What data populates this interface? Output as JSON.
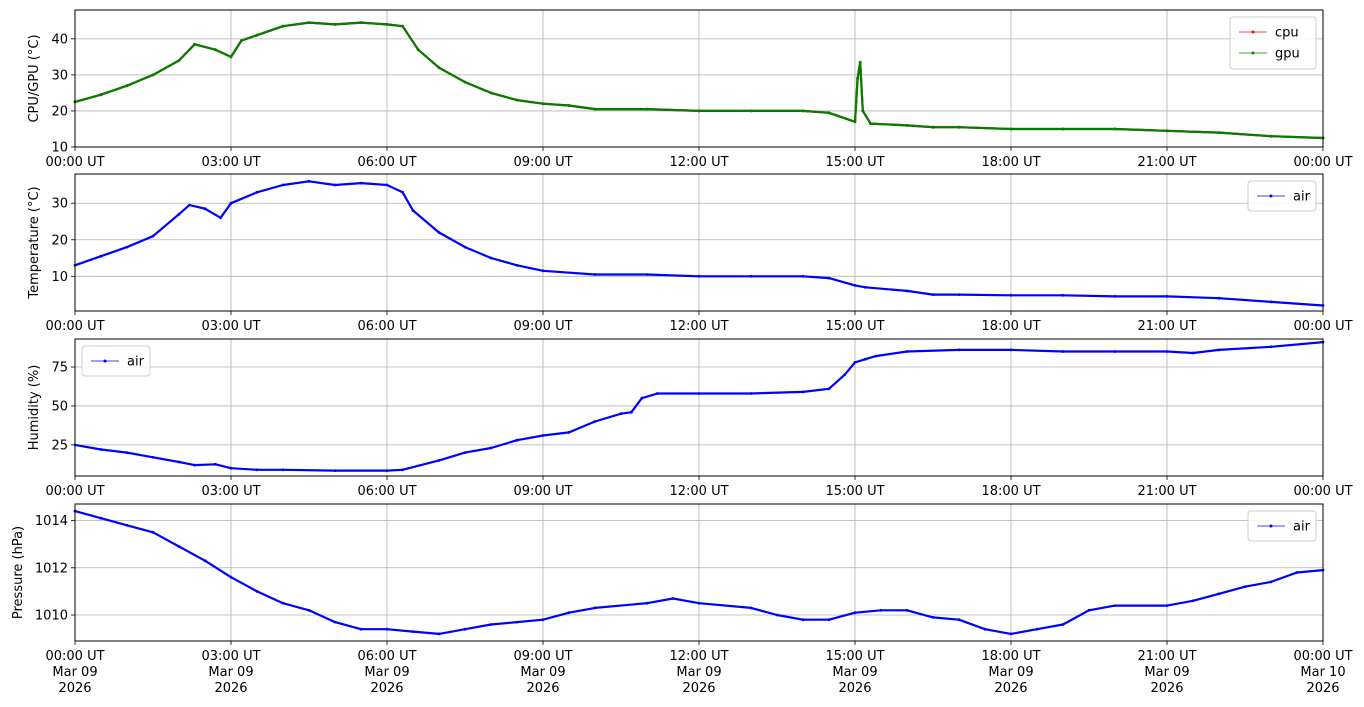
{
  "chart_data": [
    {
      "type": "line",
      "ylabel": "CPU/GPU (°C)",
      "ylim": [
        10,
        48
      ],
      "yticks": [
        10,
        20,
        30,
        40
      ],
      "xlim_hours": [
        0,
        24
      ],
      "x_tick_labels": [
        "00:00 UT",
        "03:00 UT",
        "06:00 UT",
        "09:00 UT",
        "12:00 UT",
        "15:00 UT",
        "18:00 UT",
        "21:00 UT",
        "00:00 UT"
      ],
      "grid": true,
      "legend_position": "top-right",
      "series": [
        {
          "name": "cpu",
          "color": "#ff0000",
          "points": [
            [
              0,
              22.5
            ],
            [
              0.5,
              24.5
            ],
            [
              1,
              27
            ],
            [
              1.5,
              30
            ],
            [
              2,
              34
            ],
            [
              2.3,
              38.5
            ],
            [
              2.7,
              37
            ],
            [
              3,
              35
            ],
            [
              3.2,
              39.5
            ],
            [
              3.5,
              41
            ],
            [
              4,
              43.5
            ],
            [
              4.5,
              44.5
            ],
            [
              5,
              44
            ],
            [
              5.5,
              44.5
            ],
            [
              6,
              44
            ],
            [
              6.3,
              43.5
            ],
            [
              6.6,
              37
            ],
            [
              7,
              32
            ],
            [
              7.5,
              28
            ],
            [
              8,
              25
            ],
            [
              8.5,
              23
            ],
            [
              9,
              22
            ],
            [
              9.5,
              21.5
            ],
            [
              10,
              20.5
            ],
            [
              11,
              20.5
            ],
            [
              12,
              20
            ],
            [
              13,
              20
            ],
            [
              14,
              20
            ],
            [
              14.5,
              19.5
            ],
            [
              15,
              17
            ],
            [
              15.05,
              29
            ],
            [
              15.1,
              33.5
            ],
            [
              15.15,
              20
            ],
            [
              15.3,
              16.5
            ],
            [
              16,
              16
            ],
            [
              16.5,
              15.5
            ],
            [
              17,
              15.5
            ],
            [
              18,
              15
            ],
            [
              19,
              15
            ],
            [
              20,
              15
            ],
            [
              21,
              14.5
            ],
            [
              22,
              14
            ],
            [
              23,
              13
            ],
            [
              24,
              12.5
            ]
          ]
        },
        {
          "name": "gpu",
          "color": "#008000",
          "points": [
            [
              0,
              22.5
            ],
            [
              0.5,
              24.5
            ],
            [
              1,
              27
            ],
            [
              1.5,
              30
            ],
            [
              2,
              34
            ],
            [
              2.3,
              38.5
            ],
            [
              2.7,
              37
            ],
            [
              3,
              35
            ],
            [
              3.2,
              39.5
            ],
            [
              3.5,
              41
            ],
            [
              4,
              43.5
            ],
            [
              4.5,
              44.5
            ],
            [
              5,
              44
            ],
            [
              5.5,
              44.5
            ],
            [
              6,
              44
            ],
            [
              6.3,
              43.5
            ],
            [
              6.6,
              37
            ],
            [
              7,
              32
            ],
            [
              7.5,
              28
            ],
            [
              8,
              25
            ],
            [
              8.5,
              23
            ],
            [
              9,
              22
            ],
            [
              9.5,
              21.5
            ],
            [
              10,
              20.5
            ],
            [
              11,
              20.5
            ],
            [
              12,
              20
            ],
            [
              13,
              20
            ],
            [
              14,
              20
            ],
            [
              14.5,
              19.5
            ],
            [
              15,
              17
            ],
            [
              15.05,
              29
            ],
            [
              15.1,
              33.5
            ],
            [
              15.15,
              20
            ],
            [
              15.3,
              16.5
            ],
            [
              16,
              16
            ],
            [
              16.5,
              15.5
            ],
            [
              17,
              15.5
            ],
            [
              18,
              15
            ],
            [
              19,
              15
            ],
            [
              20,
              15
            ],
            [
              21,
              14.5
            ],
            [
              22,
              14
            ],
            [
              23,
              13
            ],
            [
              24,
              12.5
            ]
          ]
        }
      ]
    },
    {
      "type": "line",
      "ylabel": "Temperature (°C)",
      "ylim": [
        0.5,
        38
      ],
      "yticks": [
        10,
        20,
        30
      ],
      "xlim_hours": [
        0,
        24
      ],
      "x_tick_labels": [
        "00:00 UT",
        "03:00 UT",
        "06:00 UT",
        "09:00 UT",
        "12:00 UT",
        "15:00 UT",
        "18:00 UT",
        "21:00 UT",
        "00:00 UT"
      ],
      "grid": true,
      "legend_position": "top-right",
      "series": [
        {
          "name": "air",
          "color": "#0000ff",
          "points": [
            [
              0,
              13
            ],
            [
              0.5,
              15.5
            ],
            [
              1,
              18
            ],
            [
              1.5,
              21
            ],
            [
              2,
              27
            ],
            [
              2.2,
              29.5
            ],
            [
              2.5,
              28.5
            ],
            [
              2.8,
              26
            ],
            [
              3,
              30
            ],
            [
              3.5,
              33
            ],
            [
              4,
              35
            ],
            [
              4.5,
              36
            ],
            [
              5,
              35
            ],
            [
              5.5,
              35.5
            ],
            [
              6,
              35
            ],
            [
              6.3,
              33
            ],
            [
              6.5,
              28
            ],
            [
              7,
              22
            ],
            [
              7.5,
              18
            ],
            [
              8,
              15
            ],
            [
              8.5,
              13
            ],
            [
              9,
              11.5
            ],
            [
              10,
              10.5
            ],
            [
              11,
              10.5
            ],
            [
              12,
              10
            ],
            [
              13,
              10
            ],
            [
              14,
              10
            ],
            [
              14.5,
              9.5
            ],
            [
              15,
              7.5
            ],
            [
              15.2,
              7
            ],
            [
              16,
              6
            ],
            [
              16.5,
              5
            ],
            [
              17,
              5
            ],
            [
              18,
              4.8
            ],
            [
              19,
              4.8
            ],
            [
              20,
              4.5
            ],
            [
              21,
              4.5
            ],
            [
              22,
              4
            ],
            [
              23,
              3
            ],
            [
              24,
              2
            ]
          ]
        }
      ]
    },
    {
      "type": "line",
      "ylabel": "Humidity (%)",
      "ylim": [
        5,
        93
      ],
      "yticks": [
        25,
        50,
        75
      ],
      "xlim_hours": [
        0,
        24
      ],
      "x_tick_labels": [
        "00:00 UT",
        "03:00 UT",
        "06:00 UT",
        "09:00 UT",
        "12:00 UT",
        "15:00 UT",
        "18:00 UT",
        "21:00 UT",
        "00:00 UT"
      ],
      "grid": true,
      "legend_position": "top-left",
      "series": [
        {
          "name": "air",
          "color": "#0000ff",
          "points": [
            [
              0,
              25
            ],
            [
              0.5,
              22
            ],
            [
              1,
              20
            ],
            [
              1.5,
              17
            ],
            [
              2,
              14
            ],
            [
              2.3,
              12
            ],
            [
              2.7,
              12.5
            ],
            [
              3,
              10
            ],
            [
              3.5,
              9
            ],
            [
              4,
              9
            ],
            [
              5,
              8.5
            ],
            [
              6,
              8.5
            ],
            [
              6.3,
              9
            ],
            [
              7,
              15
            ],
            [
              7.5,
              20
            ],
            [
              8,
              23
            ],
            [
              8.5,
              28
            ],
            [
              9,
              31
            ],
            [
              9.5,
              33
            ],
            [
              10,
              40
            ],
            [
              10.5,
              45
            ],
            [
              10.7,
              46
            ],
            [
              10.9,
              55
            ],
            [
              11.2,
              58
            ],
            [
              12,
              58
            ],
            [
              13,
              58
            ],
            [
              14,
              59
            ],
            [
              14.5,
              61
            ],
            [
              14.8,
              70
            ],
            [
              15,
              78
            ],
            [
              15.2,
              80
            ],
            [
              15.4,
              82
            ],
            [
              16,
              85
            ],
            [
              17,
              86
            ],
            [
              18,
              86
            ],
            [
              19,
              85
            ],
            [
              20,
              85
            ],
            [
              21,
              85
            ],
            [
              21.5,
              84
            ],
            [
              22,
              86
            ],
            [
              23,
              88
            ],
            [
              24,
              91
            ]
          ]
        }
      ]
    },
    {
      "type": "line",
      "ylabel": "Pressure (hPa)",
      "ylim": [
        1008.9,
        1014.7
      ],
      "yticks": [
        1010,
        1012,
        1014
      ],
      "xlim_hours": [
        0,
        24
      ],
      "x_tick_labels": [
        "00:00 UT\nMar 09\n2026",
        "03:00 UT\nMar 09\n2026",
        "06:00 UT\nMar 09\n2026",
        "09:00 UT\nMar 09\n2026",
        "12:00 UT\nMar 09\n2026",
        "15:00 UT\nMar 09\n2026",
        "18:00 UT\nMar 09\n2026",
        "21:00 UT\nMar 09\n2026",
        "00:00 UT\nMar 10\n2026"
      ],
      "grid": true,
      "legend_position": "top-right",
      "series": [
        {
          "name": "air",
          "color": "#0000ff",
          "points": [
            [
              0,
              1014.4
            ],
            [
              0.5,
              1014.1
            ],
            [
              1,
              1013.8
            ],
            [
              1.5,
              1013.5
            ],
            [
              2,
              1012.9
            ],
            [
              2.5,
              1012.3
            ],
            [
              3,
              1011.6
            ],
            [
              3.5,
              1011
            ],
            [
              4,
              1010.5
            ],
            [
              4.5,
              1010.2
            ],
            [
              5,
              1009.7
            ],
            [
              5.5,
              1009.4
            ],
            [
              6,
              1009.4
            ],
            [
              6.5,
              1009.3
            ],
            [
              7,
              1009.2
            ],
            [
              7.5,
              1009.4
            ],
            [
              8,
              1009.6
            ],
            [
              8.5,
              1009.7
            ],
            [
              9,
              1009.8
            ],
            [
              9.5,
              1010.1
            ],
            [
              10,
              1010.3
            ],
            [
              11,
              1010.5
            ],
            [
              11.5,
              1010.7
            ],
            [
              12,
              1010.5
            ],
            [
              13,
              1010.3
            ],
            [
              13.5,
              1010
            ],
            [
              14,
              1009.8
            ],
            [
              14.5,
              1009.8
            ],
            [
              15,
              1010.1
            ],
            [
              15.5,
              1010.2
            ],
            [
              16,
              1010.2
            ],
            [
              16.5,
              1009.9
            ],
            [
              17,
              1009.8
            ],
            [
              17.5,
              1009.4
            ],
            [
              18,
              1009.2
            ],
            [
              18.5,
              1009.4
            ],
            [
              19,
              1009.6
            ],
            [
              19.5,
              1010.2
            ],
            [
              20,
              1010.4
            ],
            [
              21,
              1010.4
            ],
            [
              21.5,
              1010.6
            ],
            [
              22,
              1010.9
            ],
            [
              22.5,
              1011.2
            ],
            [
              23,
              1011.4
            ],
            [
              23.5,
              1011.8
            ],
            [
              24,
              1011.9
            ]
          ]
        }
      ]
    }
  ]
}
